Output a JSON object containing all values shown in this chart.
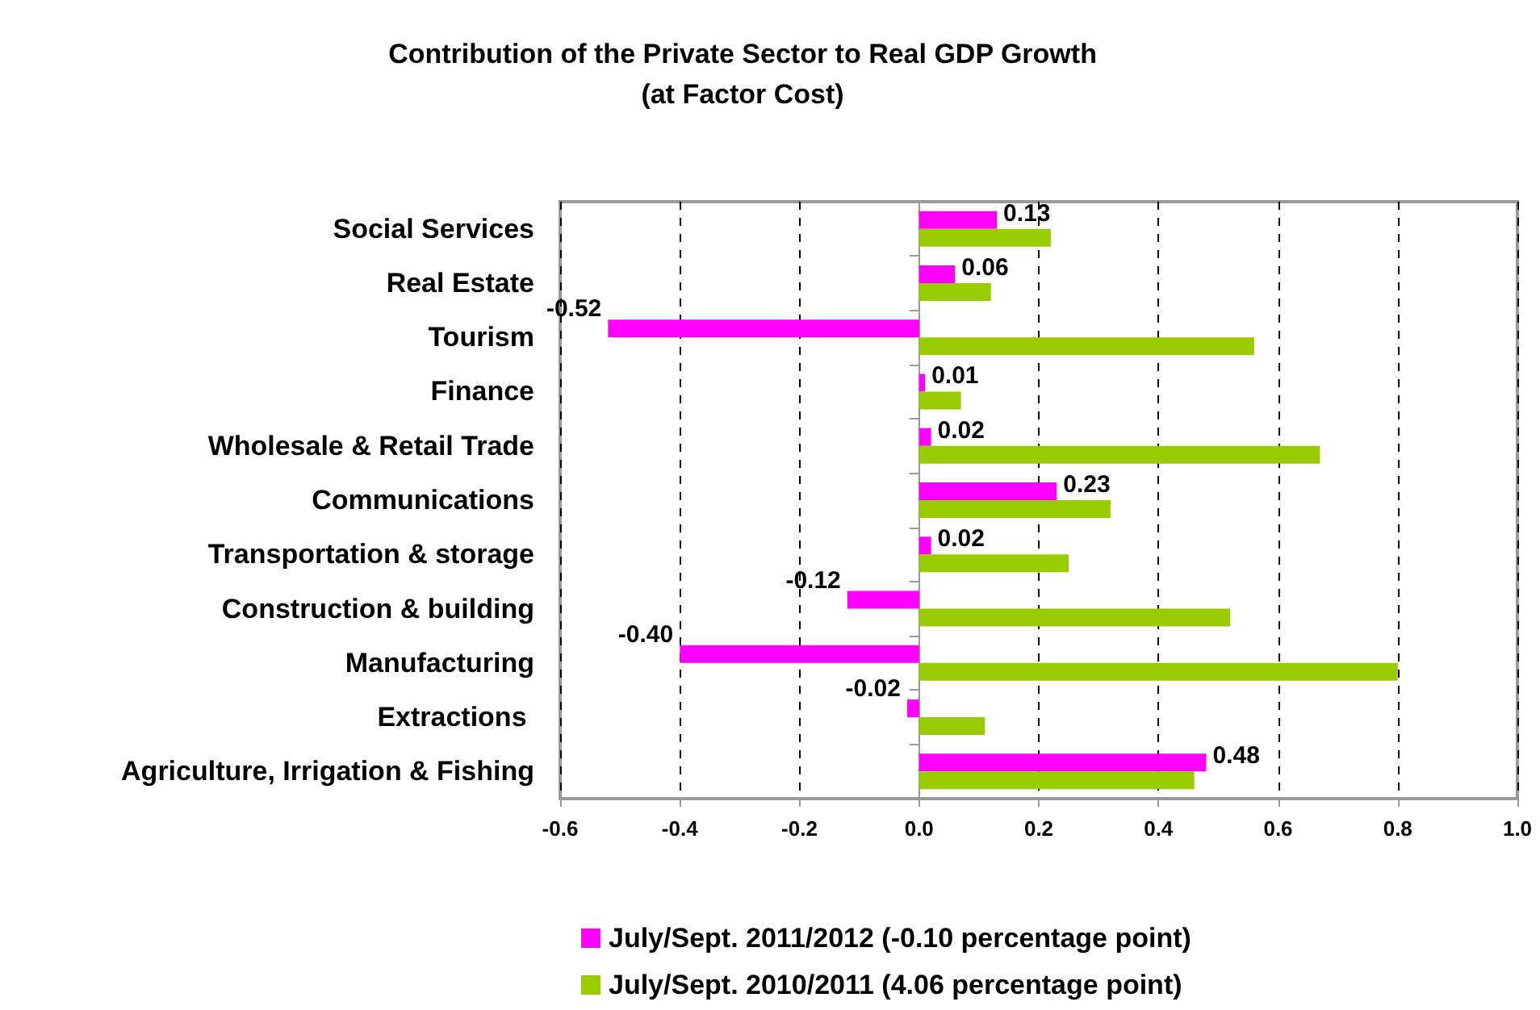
{
  "chart_data": {
    "type": "bar",
    "orientation": "horizontal",
    "title": "Contribution of the Private Sector to Real GDP Growth",
    "subtitle": "(at Factor Cost)",
    "categories": [
      "Social Services",
      "Real Estate",
      "Tourism",
      "Finance",
      "Wholesale & Retail Trade",
      "Communications",
      "Transportation & storage",
      "Construction & building",
      "Manufacturing",
      "Extractions ",
      "Agriculture, Irrigation & Fishing"
    ],
    "series": [
      {
        "name": "July/Sept. 2011/2012 (-0.10 percentage point)",
        "color": "#ff00ff",
        "values": [
          0.13,
          0.06,
          -0.52,
          0.01,
          0.02,
          0.23,
          0.02,
          -0.12,
          -0.4,
          -0.02,
          0.48
        ],
        "value_labels": [
          "0.13",
          "0.06",
          "-0.52",
          "0.01",
          "0.02",
          "0.23",
          "0.02",
          "-0.12",
          "-0.40",
          "-0.02",
          "0.48"
        ]
      },
      {
        "name": "July/Sept. 2010/2011 (4.06 percentage point)",
        "color": "#99cc00",
        "values": [
          0.22,
          0.12,
          0.56,
          0.07,
          0.67,
          0.32,
          0.25,
          0.52,
          0.8,
          0.11,
          0.46
        ]
      }
    ],
    "xlim": [
      -0.6,
      1.0
    ],
    "xticks": [
      {
        "value": -0.6,
        "label": "-0.6"
      },
      {
        "value": -0.4,
        "label": "-0.4"
      },
      {
        "value": -0.2,
        "label": "-0.2"
      },
      {
        "value": 0,
        "label": "0.0"
      },
      {
        "value": 0.2,
        "label": "0.2"
      },
      {
        "value": 0.4,
        "label": "0.4"
      },
      {
        "value": 0.6,
        "label": "0.6"
      },
      {
        "value": 0.8,
        "label": "0.8"
      },
      {
        "value": 1.0,
        "label": "1.0"
      }
    ],
    "grid": "x",
    "legend": "bottom"
  }
}
